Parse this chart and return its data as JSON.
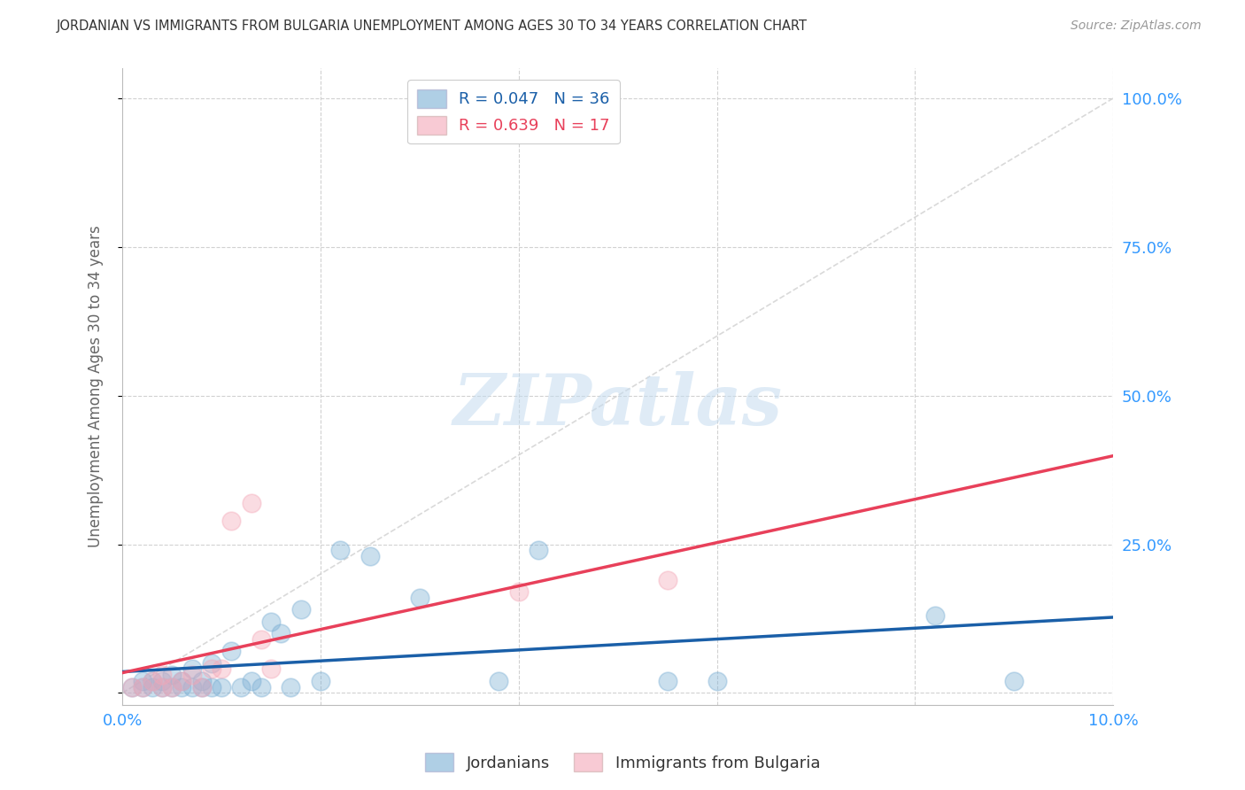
{
  "title": "JORDANIAN VS IMMIGRANTS FROM BULGARIA UNEMPLOYMENT AMONG AGES 30 TO 34 YEARS CORRELATION CHART",
  "source": "Source: ZipAtlas.com",
  "ylabel": "Unemployment Among Ages 30 to 34 years",
  "xlim": [
    0.0,
    0.1
  ],
  "ylim": [
    -0.02,
    1.05
  ],
  "y_ticks": [
    0.0,
    0.25,
    0.5,
    0.75,
    1.0
  ],
  "y_tick_labels": [
    "",
    "25.0%",
    "50.0%",
    "75.0%",
    "100.0%"
  ],
  "jordanians_x": [
    0.001,
    0.002,
    0.002,
    0.003,
    0.003,
    0.004,
    0.004,
    0.005,
    0.005,
    0.006,
    0.006,
    0.007,
    0.007,
    0.008,
    0.008,
    0.009,
    0.009,
    0.01,
    0.011,
    0.012,
    0.013,
    0.014,
    0.015,
    0.016,
    0.017,
    0.018,
    0.02,
    0.022,
    0.025,
    0.03,
    0.038,
    0.042,
    0.055,
    0.06,
    0.082,
    0.09
  ],
  "jordanians_y": [
    0.01,
    0.01,
    0.02,
    0.01,
    0.02,
    0.01,
    0.02,
    0.01,
    0.03,
    0.01,
    0.02,
    0.01,
    0.04,
    0.01,
    0.02,
    0.01,
    0.05,
    0.01,
    0.07,
    0.01,
    0.02,
    0.01,
    0.12,
    0.1,
    0.01,
    0.14,
    0.02,
    0.24,
    0.23,
    0.16,
    0.02,
    0.24,
    0.02,
    0.02,
    0.13,
    0.02
  ],
  "bulgaria_x": [
    0.001,
    0.002,
    0.003,
    0.004,
    0.004,
    0.005,
    0.006,
    0.007,
    0.008,
    0.009,
    0.01,
    0.011,
    0.013,
    0.014,
    0.015,
    0.04,
    0.055
  ],
  "bulgaria_y": [
    0.01,
    0.01,
    0.02,
    0.01,
    0.03,
    0.01,
    0.02,
    0.03,
    0.01,
    0.04,
    0.04,
    0.29,
    0.32,
    0.09,
    0.04,
    0.17,
    0.19
  ],
  "jordan_R": 0.047,
  "jordan_N": 36,
  "bulgaria_R": 0.639,
  "bulgaria_N": 17,
  "jordan_color": "#7BAFD4",
  "bulgaria_color": "#F4A8B8",
  "jordan_line_color": "#1A5FA8",
  "bulgaria_line_color": "#E8405A",
  "diagonal_color": "#D0D0D0",
  "background_color": "#FFFFFF",
  "grid_color": "#CCCCCC",
  "title_color": "#333333",
  "axis_label_color": "#666666",
  "tick_label_color": "#3399FF",
  "watermark_text": "ZIPatlas",
  "watermark_color": "#C5DCF0",
  "legend_labels": [
    "R = 0.047   N = 36",
    "R = 0.639   N = 17"
  ],
  "cat_labels": [
    "Jordanians",
    "Immigrants from Bulgaria"
  ]
}
